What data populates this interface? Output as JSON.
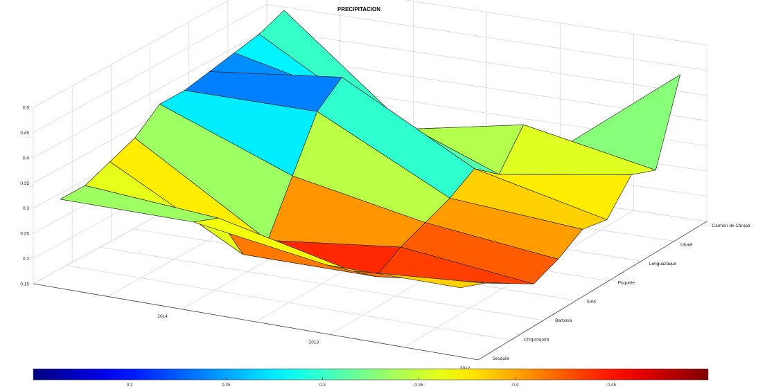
{
  "chart_data": {
    "type": "surface",
    "title": "PRECIPITACION",
    "x_ticks": [
      "2014",
      "2013",
      "2012"
    ],
    "y_ticks": [
      "Sesquile",
      "Chiquinquirá",
      "Barbosa",
      "Suta",
      "Puquete",
      "Lenguazaque",
      "Ubaté",
      "Carmen de Carupa"
    ],
    "z_ticks": [
      "0.15",
      "0.2",
      "0.25",
      "0.3",
      "0.35",
      "0.4",
      "0.45",
      "0.5"
    ],
    "zlim": [
      0.15,
      0.5
    ],
    "colorbar": {
      "colormap": "jet (reversed)",
      "ticks": [
        "0.2",
        "0.25",
        "0.3",
        "0.35",
        "0.4",
        "0.45"
      ],
      "range": [
        0.15,
        0.5
      ]
    },
    "rows": [
      "2015",
      "2014",
      "2013",
      "2012"
    ],
    "z": [
      [
        0.32,
        0.32,
        0.34,
        0.36,
        0.4,
        0.4,
        0.41,
        0.42,
        0.43,
        0.45
      ],
      [
        0.32,
        0.3,
        0.2,
        0.2,
        0.3,
        0.4,
        0.44,
        0.36,
        0.28,
        0.24
      ],
      [
        0.28,
        0.24,
        0.2,
        0.23,
        0.25,
        0.27,
        0.3,
        0.26,
        0.33,
        0.24
      ],
      [
        0.28,
        0.26,
        0.23,
        0.2,
        0.22,
        0.25,
        0.24,
        0.3,
        0.28,
        0.44
      ]
    ]
  }
}
